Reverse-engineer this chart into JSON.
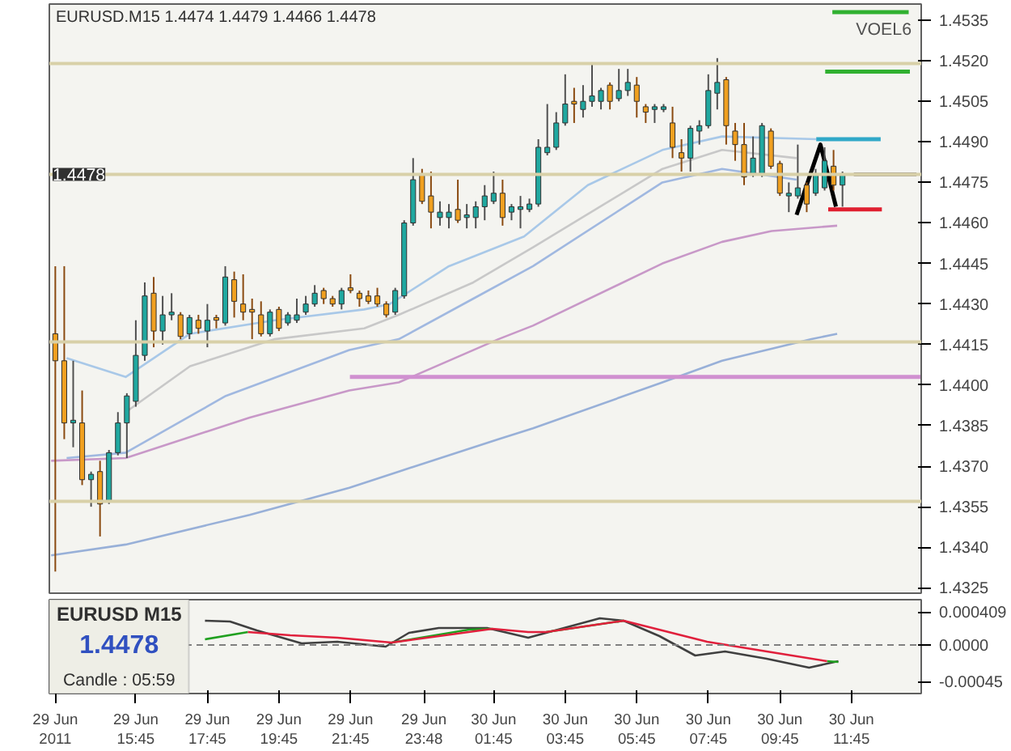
{
  "chart_data": [
    {
      "type": "candlestick",
      "title": "EURUSD.M15  1.4474 1.4479 1.4466 1.4478",
      "x": [
        "2011-06-29T13:30",
        "2011-06-29T13:45",
        "2011-06-29T14:00",
        "2011-06-29T14:15",
        "2011-06-29T14:30",
        "2011-06-29T14:45",
        "2011-06-29T15:00",
        "2011-06-29T15:15",
        "2011-06-29T15:30",
        "2011-06-29T15:45",
        "2011-06-29T16:00",
        "2011-06-29T16:15",
        "2011-06-29T16:30",
        "2011-06-29T16:45",
        "2011-06-29T17:00",
        "2011-06-29T17:15",
        "2011-06-29T17:30",
        "2011-06-29T17:45",
        "2011-06-29T18:00",
        "2011-06-29T18:15",
        "2011-06-29T18:30",
        "2011-06-29T18:45",
        "2011-06-29T19:00",
        "2011-06-29T19:15",
        "2011-06-29T19:30",
        "2011-06-29T19:45",
        "2011-06-29T20:00",
        "2011-06-29T20:15",
        "2011-06-29T20:30",
        "2011-06-29T20:45",
        "2011-06-29T21:00",
        "2011-06-29T21:15",
        "2011-06-29T21:30",
        "2011-06-29T21:45",
        "2011-06-29T22:00",
        "2011-06-29T22:15",
        "2011-06-29T22:30",
        "2011-06-29T22:45",
        "2011-06-29T23:00",
        "2011-06-29T23:15",
        "2011-06-29T23:30",
        "2011-06-29T23:45",
        "2011-06-30T00:00",
        "2011-06-30T00:15",
        "2011-06-30T00:30",
        "2011-06-30T00:45",
        "2011-06-30T01:00",
        "2011-06-30T01:15",
        "2011-06-30T01:30",
        "2011-06-30T01:45",
        "2011-06-30T02:00",
        "2011-06-30T02:15",
        "2011-06-30T02:30",
        "2011-06-30T02:45",
        "2011-06-30T03:00",
        "2011-06-30T03:15",
        "2011-06-30T03:30",
        "2011-06-30T03:45",
        "2011-06-30T04:00",
        "2011-06-30T04:15",
        "2011-06-30T04:30",
        "2011-06-30T04:45",
        "2011-06-30T05:00",
        "2011-06-30T05:15",
        "2011-06-30T05:30",
        "2011-06-30T05:45",
        "2011-06-30T06:00",
        "2011-06-30T06:15",
        "2011-06-30T06:30",
        "2011-06-30T06:45",
        "2011-06-30T07:00",
        "2011-06-30T07:15",
        "2011-06-30T07:30",
        "2011-06-30T07:45",
        "2011-06-30T08:00",
        "2011-06-30T08:15",
        "2011-06-30T08:30",
        "2011-06-30T08:45",
        "2011-06-30T09:00",
        "2011-06-30T09:15",
        "2011-06-30T09:30",
        "2011-06-30T09:45",
        "2011-06-30T10:00",
        "2011-06-30T10:15",
        "2011-06-30T10:30",
        "2011-06-30T10:45",
        "2011-06-30T11:00",
        "2011-06-30T11:15",
        "2011-06-30T11:30"
      ],
      "ohlc": [
        [
          1.4419,
          1.4444,
          1.4331,
          1.4409
        ],
        [
          1.4409,
          1.4444,
          1.438,
          1.4386
        ],
        [
          1.4386,
          1.4409,
          1.4377,
          1.4387
        ],
        [
          1.4386,
          1.4398,
          1.4363,
          1.4365
        ],
        [
          1.4365,
          1.4368,
          1.4355,
          1.4367
        ],
        [
          1.4368,
          1.4372,
          1.4344,
          1.4356
        ],
        [
          1.4357,
          1.4376,
          1.4356,
          1.4375
        ],
        [
          1.4375,
          1.439,
          1.4374,
          1.4386
        ],
        [
          1.4386,
          1.4397,
          1.4373,
          1.4396
        ],
        [
          1.4394,
          1.4424,
          1.4392,
          1.4411
        ],
        [
          1.4411,
          1.4438,
          1.4409,
          1.4433
        ],
        [
          1.4434,
          1.444,
          1.4414,
          1.442
        ],
        [
          1.442,
          1.4433,
          1.4415,
          1.4426
        ],
        [
          1.4426,
          1.4434,
          1.4424,
          1.4427
        ],
        [
          1.4426,
          1.4427,
          1.4417,
          1.4418
        ],
        [
          1.4419,
          1.4426,
          1.4417,
          1.4425
        ],
        [
          1.4424,
          1.4426,
          1.4419,
          1.4421
        ],
        [
          1.442,
          1.443,
          1.4414,
          1.4424
        ],
        [
          1.4425,
          1.4426,
          1.4421,
          1.4424
        ],
        [
          1.4423,
          1.4444,
          1.4422,
          1.444
        ],
        [
          1.4439,
          1.4442,
          1.4425,
          1.4431
        ],
        [
          1.443,
          1.4441,
          1.4424,
          1.4427
        ],
        [
          1.4428,
          1.4432,
          1.4417,
          1.4427
        ],
        [
          1.4426,
          1.4431,
          1.4418,
          1.4419
        ],
        [
          1.4419,
          1.4428,
          1.4418,
          1.4427
        ],
        [
          1.4428,
          1.4429,
          1.442,
          1.4421
        ],
        [
          1.4423,
          1.4427,
          1.4422,
          1.4426
        ],
        [
          1.4424,
          1.4432,
          1.4423,
          1.4426
        ],
        [
          1.4427,
          1.4433,
          1.4426,
          1.443
        ],
        [
          1.443,
          1.4437,
          1.4429,
          1.4434
        ],
        [
          1.4435,
          1.4436,
          1.443,
          1.4432
        ],
        [
          1.4432,
          1.4433,
          1.4429,
          1.443
        ],
        [
          1.443,
          1.4436,
          1.4428,
          1.4435
        ],
        [
          1.4436,
          1.4441,
          1.4434,
          1.4435
        ],
        [
          1.4434,
          1.4435,
          1.4429,
          1.4432
        ],
        [
          1.4433,
          1.4435,
          1.443,
          1.4431
        ],
        [
          1.4433,
          1.4436,
          1.4429,
          1.443
        ],
        [
          1.443,
          1.4431,
          1.4425,
          1.4426
        ],
        [
          1.4427,
          1.4436,
          1.4426,
          1.4435
        ],
        [
          1.4433,
          1.4461,
          1.4432,
          1.446
        ],
        [
          1.446,
          1.4484,
          1.4459,
          1.4476
        ],
        [
          1.4478,
          1.448,
          1.4467,
          1.4468
        ],
        [
          1.447,
          1.4479,
          1.4458,
          1.4464
        ],
        [
          1.4462,
          1.4468,
          1.4459,
          1.4464
        ],
        [
          1.4462,
          1.4467,
          1.4458,
          1.4464
        ],
        [
          1.4465,
          1.4476,
          1.446,
          1.4461
        ],
        [
          1.4462,
          1.4467,
          1.4458,
          1.4463
        ],
        [
          1.4462,
          1.4468,
          1.4458,
          1.4466
        ],
        [
          1.4466,
          1.4474,
          1.4461,
          1.447
        ],
        [
          1.4468,
          1.4479,
          1.4467,
          1.4471
        ],
        [
          1.4471,
          1.4476,
          1.4459,
          1.4462
        ],
        [
          1.4464,
          1.4467,
          1.4461,
          1.4466
        ],
        [
          1.4465,
          1.447,
          1.4458,
          1.4466
        ],
        [
          1.4465,
          1.4469,
          1.4464,
          1.4467
        ],
        [
          1.4467,
          1.4491,
          1.4466,
          1.4488
        ],
        [
          1.4486,
          1.4504,
          1.4485,
          1.4488
        ],
        [
          1.4488,
          1.4501,
          1.4487,
          1.4497
        ],
        [
          1.4497,
          1.4515,
          1.4496,
          1.4504
        ],
        [
          1.4505,
          1.451,
          1.4497,
          1.4504
        ],
        [
          1.4502,
          1.4511,
          1.4499,
          1.4505
        ],
        [
          1.4505,
          1.4519,
          1.4503,
          1.4507
        ],
        [
          1.4505,
          1.451,
          1.4502,
          1.4509
        ],
        [
          1.4511,
          1.4512,
          1.4502,
          1.4505
        ],
        [
          1.4506,
          1.4517,
          1.4505,
          1.4509
        ],
        [
          1.4509,
          1.4517,
          1.4507,
          1.4512
        ],
        [
          1.4511,
          1.4514,
          1.4499,
          1.4505
        ],
        [
          1.4503,
          1.4504,
          1.4497,
          1.4501
        ],
        [
          1.4502,
          1.4504,
          1.4497,
          1.4503
        ],
        [
          1.4502,
          1.4504,
          1.4501,
          1.4503
        ],
        [
          1.4497,
          1.4503,
          1.4484,
          1.4488
        ],
        [
          1.4486,
          1.4491,
          1.4479,
          1.4484
        ],
        [
          1.4484,
          1.4496,
          1.4479,
          1.4495
        ],
        [
          1.4494,
          1.4498,
          1.4489,
          1.4496
        ],
        [
          1.4496,
          1.4515,
          1.4495,
          1.4509
        ],
        [
          1.4508,
          1.4521,
          1.4502,
          1.4512
        ],
        [
          1.4513,
          1.4514,
          1.4489,
          1.4496
        ],
        [
          1.4494,
          1.4497,
          1.4483,
          1.4489
        ],
        [
          1.4489,
          1.4497,
          1.4474,
          1.4477
        ],
        [
          1.4478,
          1.4492,
          1.4477,
          1.4484
        ],
        [
          1.4478,
          1.4497,
          1.4477,
          1.4496
        ],
        [
          1.4494,
          1.4495,
          1.448,
          1.4481
        ],
        [
          1.4482,
          1.4483,
          1.447,
          1.4471
        ],
        [
          1.447,
          1.4475,
          1.4464,
          1.4471
        ],
        [
          1.447,
          1.4489,
          1.4469,
          1.4473
        ],
        [
          1.4474,
          1.4475,
          1.4464,
          1.4467
        ],
        [
          1.4471,
          1.448,
          1.447,
          1.4478
        ],
        [
          1.4473,
          1.4488,
          1.4472,
          1.4483
        ],
        [
          1.4481,
          1.4487,
          1.4472,
          1.4474
        ],
        [
          1.4474,
          1.4479,
          1.4466,
          1.4478
        ]
      ],
      "colors": [
        "#f0a020",
        "#f0a020",
        "#20a8a0",
        "#f0a020",
        "#20a8a0",
        "#f0a020",
        "#20a8a0",
        "#20a8a0",
        "#20a8a0",
        "#20a8a0",
        "#20a8a0",
        "#f0a020",
        "#20a8a0",
        "#20a8a0",
        "#f0a020",
        "#20a8a0",
        "#f0a020",
        "#20a8a0",
        "#f0a020",
        "#20a8a0",
        "#f0a020",
        "#f0a020",
        "#f0a020",
        "#f0a020",
        "#20a8a0",
        "#f0a020",
        "#20a8a0",
        "#20a8a0",
        "#20a8a0",
        "#20a8a0",
        "#f0a020",
        "#f0a020",
        "#20a8a0",
        "#f0a020",
        "#f0a020",
        "#f0a020",
        "#f0a020",
        "#f0a020",
        "#20a8a0",
        "#20a8a0",
        "#20a8a0",
        "#f0a020",
        "#f0a020",
        "#20a8a0",
        "#20a8a0",
        "#f0a020",
        "#20a8a0",
        "#20a8a0",
        "#20a8a0",
        "#20a8a0",
        "#f0a020",
        "#20a8a0",
        "#20a8a0",
        "#20a8a0",
        "#20a8a0",
        "#20a8a0",
        "#20a8a0",
        "#20a8a0",
        "#f0a020",
        "#20a8a0",
        "#20a8a0",
        "#20a8a0",
        "#f0a020",
        "#20a8a0",
        "#20a8a0",
        "#f0a020",
        "#f0a020",
        "#20a8a0",
        "#20a8a0",
        "#f0a020",
        "#f0a020",
        "#20a8a0",
        "#20a8a0",
        "#20a8a0",
        "#20a8a0",
        "#f0a020",
        "#f0a020",
        "#f0a020",
        "#20a8a0",
        "#20a8a0",
        "#f0a020",
        "#f0a020",
        "#20a8a0",
        "#20a8a0",
        "#f0a020",
        "#20a8a0",
        "#20a8a0",
        "#f0a020",
        "#20a8a0"
      ],
      "series": [
        {
          "type": "line",
          "color": "#a8c8e8",
          "x": [
            "2011-06-29T13:49",
            "2011-06-29T15:28",
            "2011-06-29T17:16",
            "2011-06-29T19:38",
            "2011-06-29T22:08",
            "2011-06-29T22:51",
            "2011-06-30T00:30",
            "2011-06-30T02:36",
            "2011-06-30T04:23",
            "2011-06-30T06:28",
            "2011-06-30T08:08",
            "2011-06-30T10:46"
          ],
          "values": [
            1.441,
            1.4403,
            1.4419,
            1.4424,
            1.4428,
            1.443,
            1.4444,
            1.4455,
            1.4474,
            1.4487,
            1.4492,
            1.4491
          ]
        },
        {
          "type": "line",
          "color": "#c8c8c8",
          "x": [
            "2011-06-29T15:28",
            "2011-06-29T17:16",
            "2011-06-29T19:38",
            "2011-06-29T22:08",
            "2011-06-29T23:06",
            "2011-06-30T01:11",
            "2011-06-30T02:51",
            "2011-06-30T06:28",
            "2011-06-30T08:08",
            "2011-06-30T10:13"
          ],
          "values": [
            1.439,
            1.4407,
            1.4417,
            1.4421,
            1.4426,
            1.4438,
            1.4451,
            1.448,
            1.4487,
            1.4484
          ]
        },
        {
          "type": "line",
          "color": "#a0b8e0",
          "x": [
            "2011-06-29T13:49",
            "2011-06-29T15:28",
            "2011-06-29T18:16",
            "2011-06-29T21:43",
            "2011-06-29T23:06",
            "2011-06-30T01:11",
            "2011-06-30T02:51",
            "2011-06-30T06:28",
            "2011-06-30T08:08",
            "2011-06-30T10:13"
          ],
          "values": [
            1.4373,
            1.4375,
            1.4396,
            1.4413,
            1.4417,
            1.4432,
            1.4444,
            1.4475,
            1.448,
            1.4476
          ]
        },
        {
          "type": "line",
          "color": "#c898c8",
          "x": [
            "2011-06-29T13:23",
            "2011-06-29T15:28",
            "2011-06-29T18:56",
            "2011-06-29T21:43",
            "2011-06-29T23:06",
            "2011-06-30T01:53",
            "2011-06-30T02:51",
            "2011-06-30T06:28",
            "2011-06-30T08:08",
            "2011-06-30T09:31",
            "2011-06-30T11:21"
          ],
          "values": [
            1.4372,
            1.4373,
            1.4388,
            1.4398,
            1.4401,
            1.4417,
            1.4422,
            1.4445,
            1.4453,
            1.4457,
            1.4459
          ]
        },
        {
          "type": "line",
          "color": "#98b0d8",
          "x": [
            "2011-06-29T13:23",
            "2011-06-29T15:28",
            "2011-06-29T18:56",
            "2011-06-29T21:43",
            "2011-06-29T23:06",
            "2011-06-30T01:53",
            "2011-06-30T02:51",
            "2011-06-30T06:28",
            "2011-06-30T08:08",
            "2011-06-30T10:38",
            "2011-06-30T11:21"
          ],
          "values": [
            1.4337,
            1.4341,
            1.4352,
            1.4362,
            1.4368,
            1.438,
            1.4384,
            1.4401,
            1.4409,
            1.4417,
            1.4419
          ]
        },
        {
          "type": "line",
          "color": "#d090d0",
          "x": [
            "2011-06-29T21:44",
            "2011-06-30T13:42"
          ],
          "values": [
            1.4403,
            1.4403
          ]
        },
        {
          "type": "line",
          "color": "#30b030",
          "x": [
            "2011-06-30T11:13",
            "2011-06-30T13:21"
          ],
          "values": [
            1.4538,
            1.4538
          ]
        },
        {
          "type": "line",
          "color": "#30b030",
          "x": [
            "2011-06-30T11:01",
            "2011-06-30T13:23"
          ],
          "values": [
            1.4516,
            1.4516
          ]
        },
        {
          "type": "line",
          "color": "#30a8c8",
          "x": [
            "2011-06-30T10:46",
            "2011-06-30T12:34"
          ],
          "values": [
            1.4491,
            1.4491
          ]
        },
        {
          "type": "line",
          "color": "#e02030",
          "x": [
            "2011-06-30T11:06",
            "2011-06-30T12:36"
          ],
          "values": [
            1.4465,
            1.4465
          ]
        },
        {
          "type": "line",
          "color": "#a09890",
          "x": [
            "2011-06-30T11:49",
            "2011-06-30T13:34"
          ],
          "values": [
            1.4478,
            1.4478
          ]
        },
        {
          "type": "line",
          "color": "#000000",
          "x": [
            "2011-06-30T10:13",
            "2011-06-30T10:53",
            "2011-06-30T11:19"
          ],
          "values": [
            1.4463,
            1.4489,
            1.4466
          ]
        }
      ],
      "ref_lines": [
        {
          "axis": "y",
          "value": 1.4519,
          "color": "#d8d0a8"
        },
        {
          "axis": "y",
          "value": 1.4478,
          "color": "#d8d0a8",
          "label": "1.4478"
        },
        {
          "axis": "y",
          "value": 1.4416,
          "color": "#d8d0a8"
        },
        {
          "axis": "y",
          "value": 1.4357,
          "color": "#d8d0a8"
        }
      ],
      "annotations": [
        "VOEL6"
      ],
      "xlim": [
        "2011-06-29T13:20",
        "2011-06-30T13:42"
      ],
      "ylim": [
        1.4323,
        1.4541
      ],
      "yticks": [
        1.4325,
        {
          "value": 1.434,
          "label": "1.4340"
        },
        1.4355,
        {
          "value": 1.437,
          "label": "1.4370"
        },
        1.4385,
        {
          "value": 1.44,
          "label": "1.4400"
        },
        1.4415,
        {
          "value": 1.443,
          "label": "1.4430"
        },
        1.4445,
        {
          "value": 1.446,
          "label": "1.4460"
        },
        1.4475,
        {
          "value": 1.449,
          "label": "1.4490"
        },
        1.4505,
        {
          "value": 1.452,
          "label": "1.4520"
        },
        1.4535
      ],
      "tick_labels": "y"
    },
    {
      "type": "line",
      "series": [
        {
          "color": "#404040",
          "x": [
            "2011-06-29T17:41",
            "2011-06-29T18:23",
            "2011-06-29T19:08",
            "2011-06-29T20:23",
            "2011-06-29T21:23",
            "2011-06-29T22:44",
            "2011-06-29T23:23",
            "2011-06-30T00:13",
            "2011-06-30T01:34",
            "2011-06-30T02:43",
            "2011-06-30T03:43",
            "2011-06-30T04:43",
            "2011-06-30T05:23",
            "2011-06-30T06:23",
            "2011-06-30T07:23",
            "2011-06-30T08:13",
            "2011-06-30T09:23",
            "2011-06-30T10:34",
            "2011-06-30T11:23"
          ],
          "values": [
            0.0003,
            0.00029,
            0.00018,
            2e-05,
            4e-05,
            -2e-05,
            0.00015,
            0.00021,
            0.00021,
            9e-05,
            0.00021,
            0.00033,
            0.0003,
            0.00011,
            -0.00013,
            -8e-05,
            -0.00017,
            -0.00028,
            -0.0002
          ]
        },
        {
          "color": "#20a020",
          "x": [
            "2011-06-29T17:41",
            "2011-06-29T18:53",
            "2011-06-29T21:00",
            "2011-06-29T22:54",
            "2011-06-30T01:04",
            "2011-06-30T01:43",
            "2011-06-30T02:30",
            "2011-06-30T03:13",
            "2011-06-30T05:23",
            "2011-06-30T08:00",
            "2011-06-30T11:04",
            "2011-06-30T11:23"
          ],
          "values": [
            7e-05,
            0.00016,
            null,
            3e-05,
            0.00019,
            0.0002,
            null,
            0.00016,
            0.0003,
            null,
            -0.0002,
            -0.00021
          ]
        },
        {
          "color": "#e0203c",
          "x": [
            "2011-06-29T18:53",
            "2011-06-29T20:04",
            "2011-06-29T21:23",
            "2011-06-29T22:54",
            "2011-06-30T01:43",
            "2011-06-30T02:43",
            "2011-06-30T03:13",
            "2011-06-30T05:23",
            "2011-06-30T07:43",
            "2011-06-30T09:23",
            "2011-06-30T11:04"
          ],
          "values": [
            0.00016,
            0.00012,
            9e-05,
            3e-05,
            0.0002,
            0.00016,
            0.00016,
            0.0003,
            4e-05,
            -8e-05,
            -0.0002
          ]
        }
      ],
      "ref_lines": [
        {
          "axis": "y",
          "value": 0,
          "color": "#808080",
          "line_style": "dashed"
        }
      ],
      "annotations": [
        "EURUSD M15",
        "1.4478",
        "Candle : 05:59"
      ],
      "xlim": [
        "2011-06-29T13:20",
        "2011-06-30T13:42"
      ],
      "ylim": [
        -0.0006,
        0.00056
      ],
      "xticks": [
        {
          "value": "2011-06-29T13:30",
          "label": "29 Jun 2011"
        },
        {
          "value": "2011-06-29T15:45",
          "label": "29 Jun 15:45"
        },
        {
          "value": "2011-06-29T17:45",
          "label": "29 Jun 17:45"
        },
        {
          "value": "2011-06-29T19:45",
          "label": "29 Jun 19:45"
        },
        {
          "value": "2011-06-29T21:45",
          "label": "29 Jun 21:45"
        },
        {
          "value": "2011-06-29T23:48",
          "label": "29 Jun 23:48"
        },
        {
          "value": "2011-06-30T01:45",
          "label": "30 Jun 01:45"
        },
        {
          "value": "2011-06-30T03:45",
          "label": "30 Jun 03:45"
        },
        {
          "value": "2011-06-30T05:45",
          "label": "30 Jun 05:45"
        },
        {
          "value": "2011-06-30T07:45",
          "label": "30 Jun 07:45"
        },
        {
          "value": "2011-06-30T09:45",
          "label": "30 Jun 09:45"
        },
        {
          "value": "2011-06-30T11:45",
          "label": "30 Jun 11:45"
        }
      ],
      "yticks": [
        {
          "value": 0.000409,
          "label": "0.000409"
        },
        {
          "value": 0,
          "label": "0.0000"
        },
        {
          "value": -0.00045,
          "label": "-0.00045"
        }
      ]
    }
  ]
}
